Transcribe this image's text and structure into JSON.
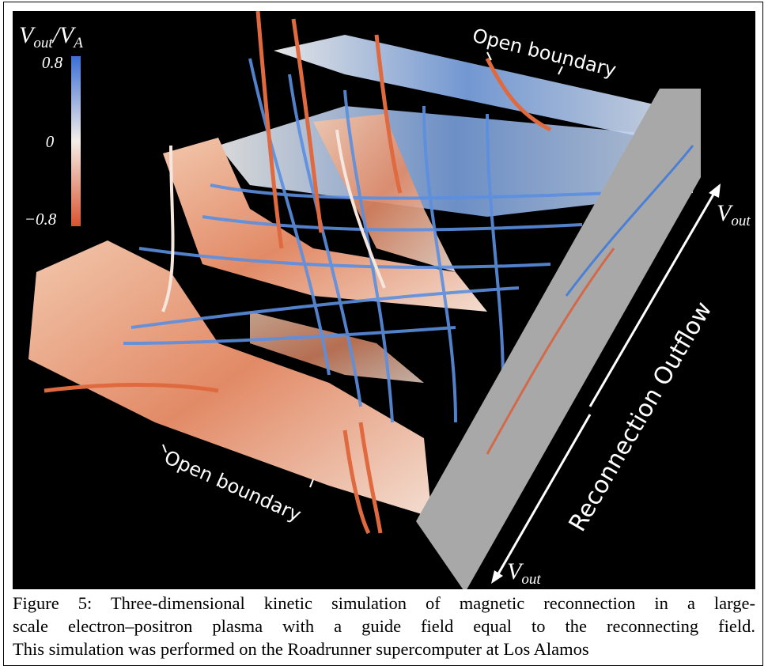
{
  "figure": {
    "colorbar": {
      "label_parts": [
        "V",
        "out",
        "/V",
        "A"
      ],
      "ticks": [
        "0.8",
        "0",
        "−0.8"
      ]
    },
    "annotations": {
      "open_boundary_top": "Open boundary",
      "open_boundary_bottom": "Open boundary",
      "outflow": "Reconnection Outflow",
      "vout_right": [
        "V",
        "out"
      ],
      "vout_bottom": [
        "V",
        "out"
      ]
    }
  },
  "caption": {
    "lines": [
      "Figure 5: Three-dimensional kinetic simulation of magnetic reconnection in a large-",
      "scale electron–positron plasma with a guide field equal to the reconnecting field.",
      "This simulation was performed on the Roadrunner supercomputer at Los Alamos"
    ]
  }
}
